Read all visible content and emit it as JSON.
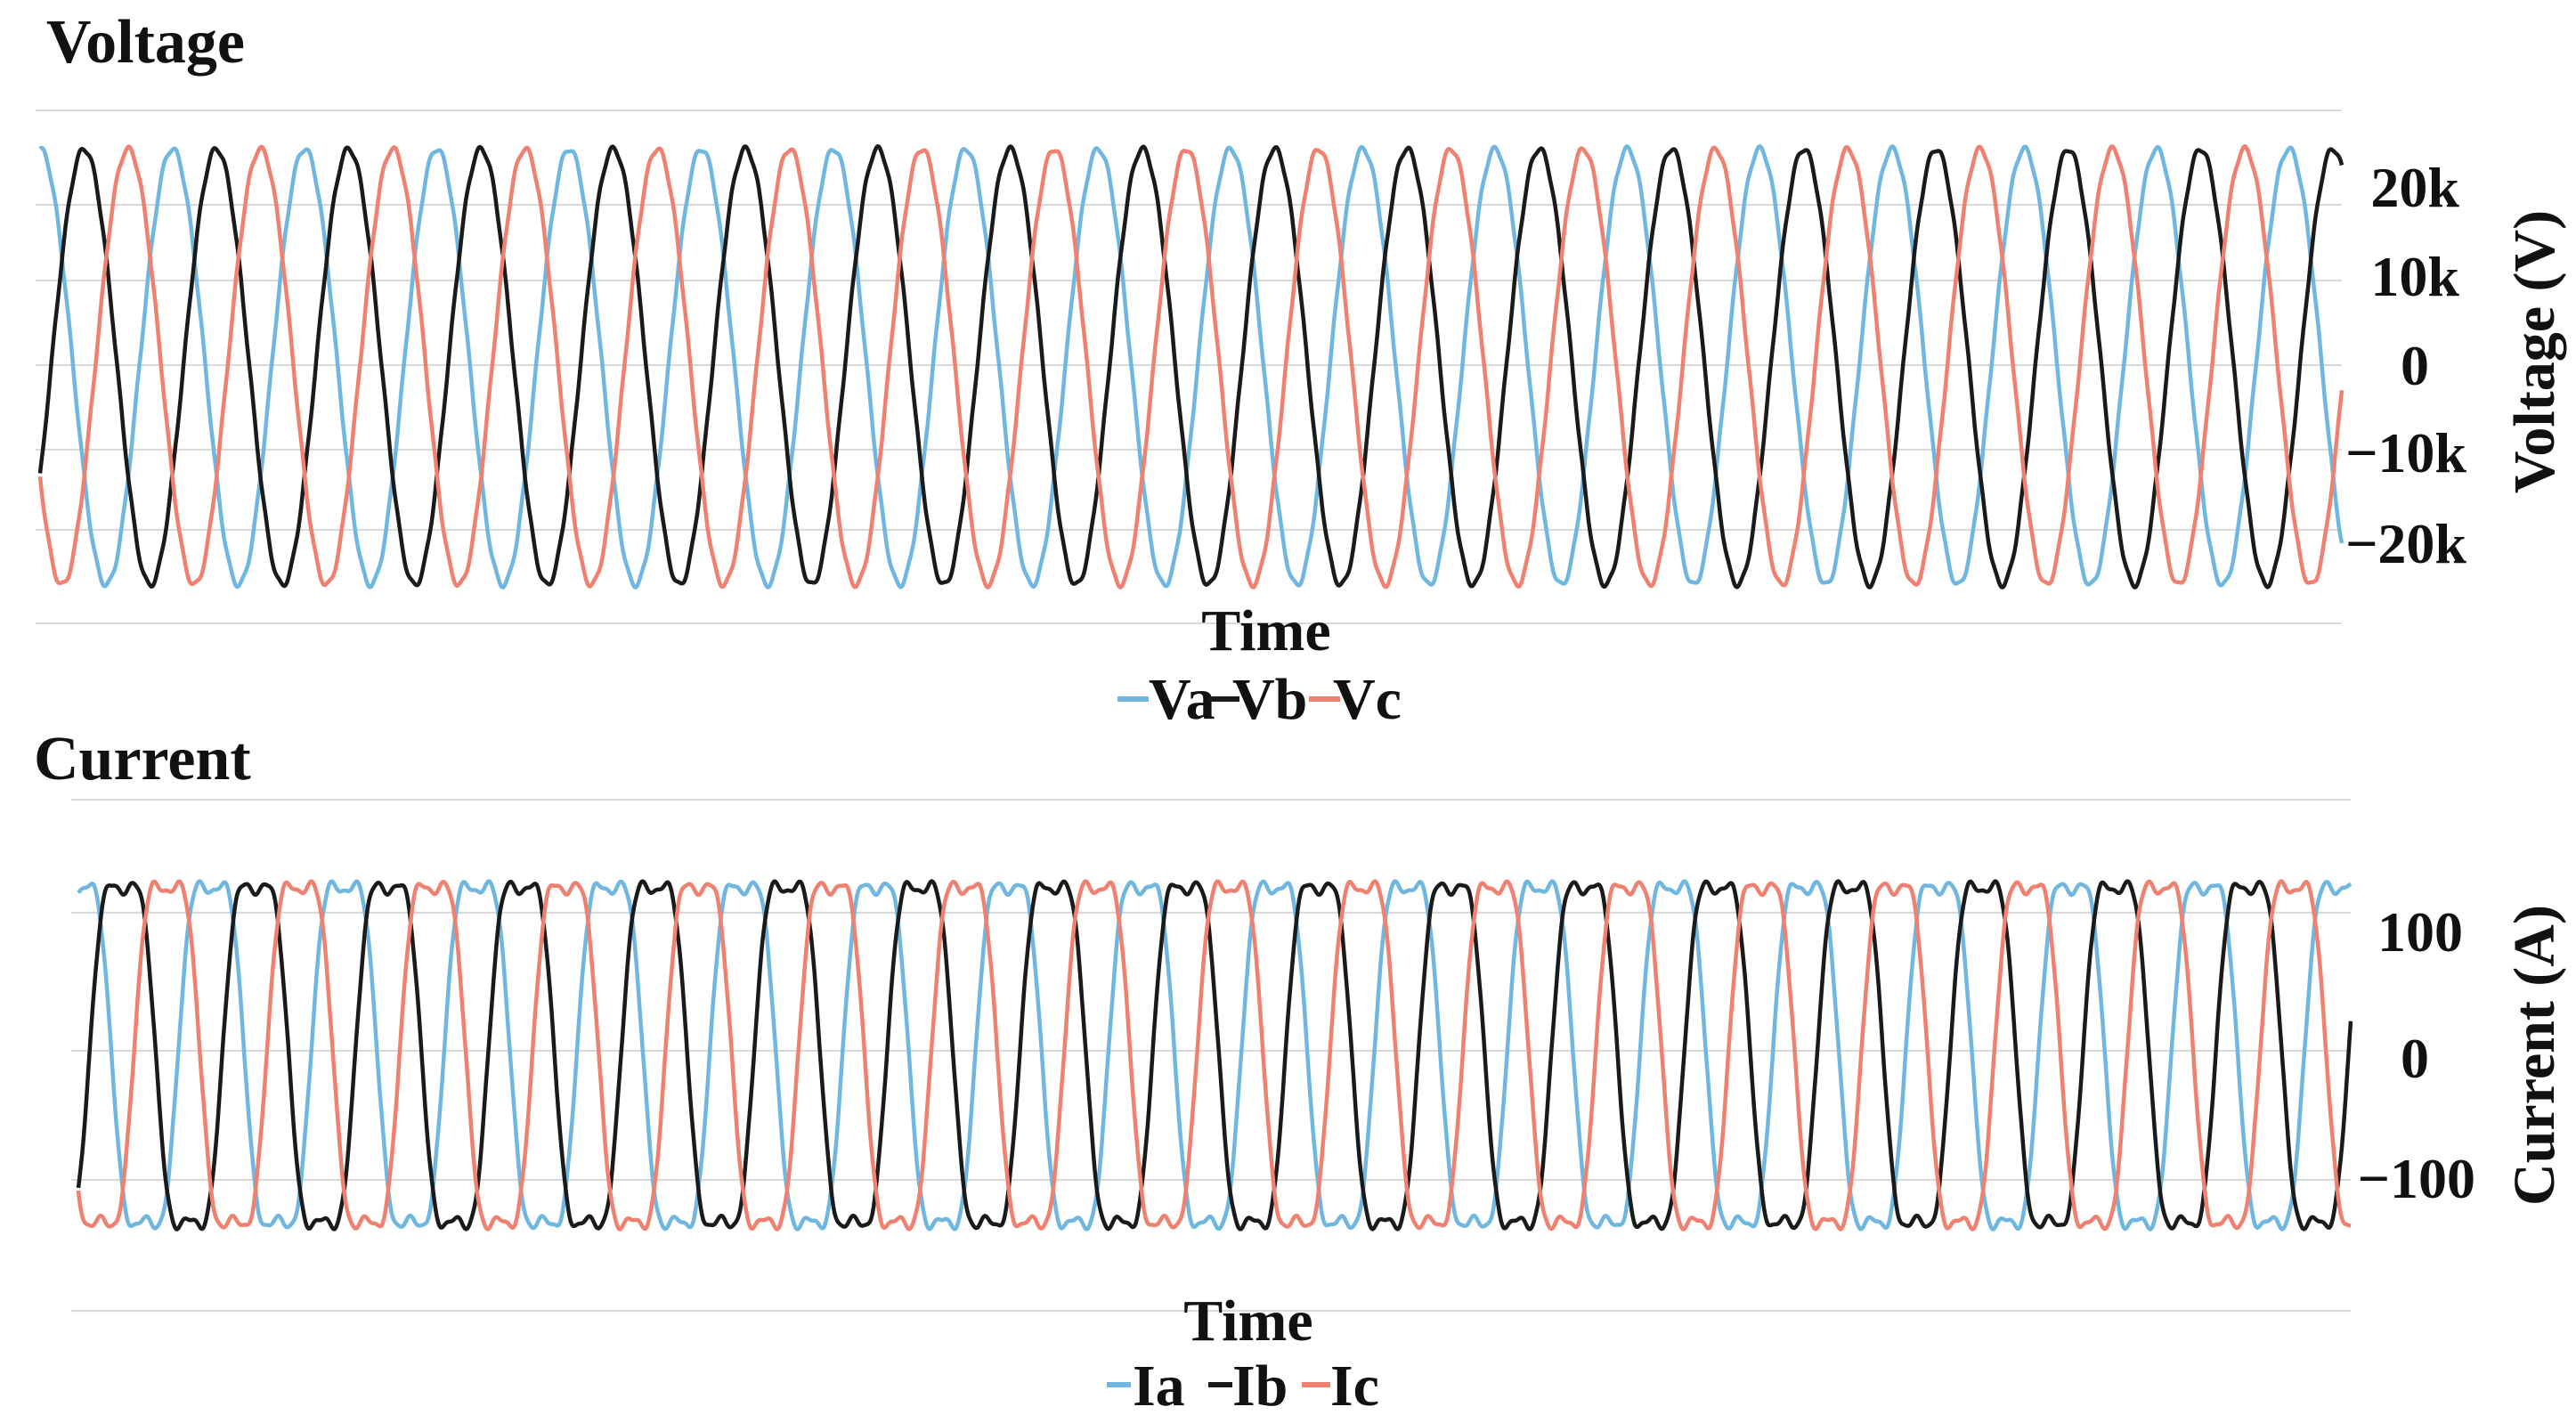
{
  "chart_data": [
    {
      "type": "line",
      "title": "Voltage",
      "xlabel": "Time",
      "ylabel": "Voltage (V)",
      "yticks": [
        20000,
        10000,
        0,
        -10000,
        -20000
      ],
      "ytick_labels": [
        "20k",
        "10k",
        "0",
        "−10k",
        "−20k"
      ],
      "ylim": [
        -30000,
        30000
      ],
      "y_axis_side": "right",
      "grid": true,
      "legend": "bottom-center",
      "waveform": {
        "amplitude": 25500,
        "cycles": 17.4,
        "phase_shift_deg": 120
      },
      "series": [
        {
          "name": "Va",
          "color": "#6fb7e0",
          "phase_deg": 90
        },
        {
          "name": "Vb",
          "color": "#1a1a1a",
          "phase_deg": -30
        },
        {
          "name": "Vc",
          "color": "#f08070",
          "phase_deg": 210
        }
      ]
    },
    {
      "type": "line",
      "title": "Current",
      "xlabel": "Time",
      "ylabel": "Current (A)",
      "yticks": [
        100,
        0,
        -100
      ],
      "ytick_labels": [
        "100",
        "0",
        "−100"
      ],
      "ylim": [
        -190,
        190
      ],
      "y_axis_side": "right",
      "grid": true,
      "legend": "bottom-center",
      "waveform": {
        "amplitude": 140,
        "cycles": 17.1,
        "phase_shift_deg": 120,
        "flat_topped": true
      },
      "series": [
        {
          "name": "Ia",
          "color": "#6fb7e0",
          "phase_deg": 90
        },
        {
          "name": "Ib",
          "color": "#1a1a1a",
          "phase_deg": -30
        },
        {
          "name": "Ic",
          "color": "#f08070",
          "phase_deg": 210
        }
      ]
    }
  ]
}
